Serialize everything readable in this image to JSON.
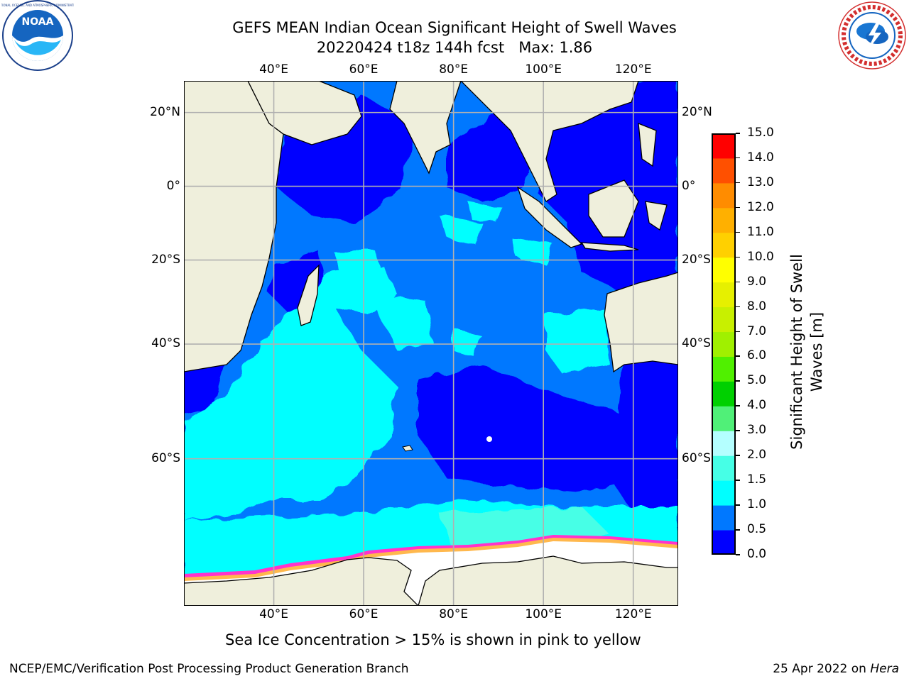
{
  "title": {
    "line1": "GEFS MEAN Indian Ocean Significant Height of Swell Waves",
    "line2": "20220424 t18z 144h fcst   Max: 1.86"
  },
  "logos": {
    "left": "noaa-logo",
    "right": "nws-logo",
    "right_ring_text": "NATIONAL WEATHER SERVICE"
  },
  "map": {
    "lon_range": [
      20,
      130
    ],
    "lat_range": [
      -75,
      28
    ],
    "lon_ticks": [
      {
        "value": 40,
        "label": "40°E"
      },
      {
        "value": 60,
        "label": "60°E"
      },
      {
        "value": 80,
        "label": "80°E"
      },
      {
        "value": 100,
        "label": "100°E"
      },
      {
        "value": 120,
        "label": "120°E"
      }
    ],
    "lat_ticks": [
      {
        "value": 20,
        "label": "20°N"
      },
      {
        "value": 0,
        "label": "0°"
      },
      {
        "value": -20,
        "label": "20°S"
      },
      {
        "value": -40,
        "label": "40°S"
      },
      {
        "value": -60,
        "label": "60°S"
      }
    ],
    "grid": true,
    "colors": {
      "land": "#efefdc",
      "ice": "#ffffff",
      "ice_edge": "#ff33cc",
      "ice_edge2": "#ffb84d",
      "grid": "#b0b0b0"
    }
  },
  "colorbar": {
    "label": "Significant Height of Swell Waves [m]",
    "levels": [
      "0.0",
      "0.5",
      "1.0",
      "1.5",
      "2.0",
      "3.0",
      "4.0",
      "5.0",
      "6.0",
      "7.0",
      "8.0",
      "9.0",
      "10.0",
      "11.0",
      "12.0",
      "13.0",
      "14.0",
      "15.0"
    ],
    "colors": [
      "#0000ff",
      "#0078ff",
      "#00ffff",
      "#46ffe6",
      "#b4ffff",
      "#50f078",
      "#00d000",
      "#50f000",
      "#a0f000",
      "#c8f000",
      "#e6f000",
      "#ffff00",
      "#ffd000",
      "#ffb000",
      "#ff8c00",
      "#ff5000",
      "#ff0000"
    ]
  },
  "note": "Sea Ice Concentration > 15% is shown in pink to yellow",
  "footer": {
    "left": "NCEP/EMC/Verification Post Processing Product Generation Branch",
    "right_date": "25 Apr 2022 on ",
    "right_host": "Hera"
  }
}
